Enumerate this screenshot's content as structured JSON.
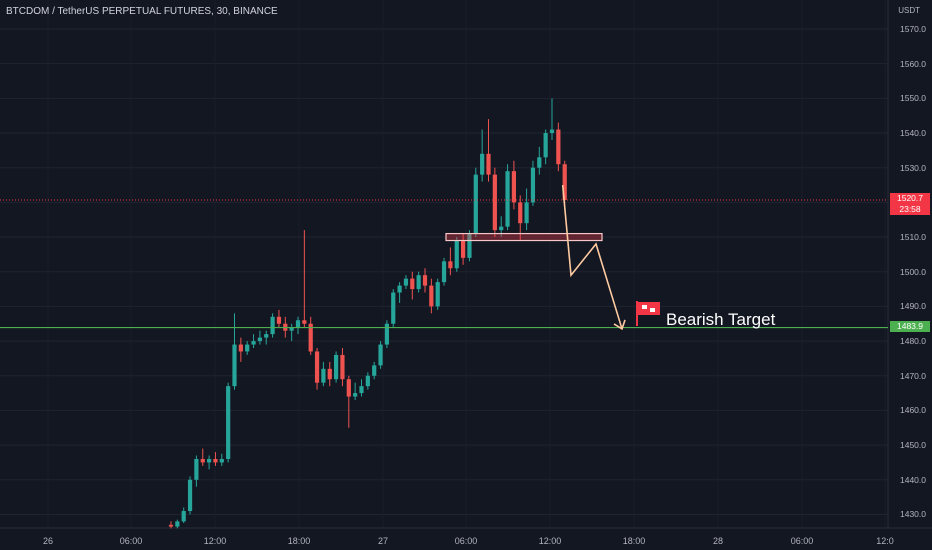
{
  "header": {
    "symbol_title": "BTCDOM / TetherUS PERPETUAL FUTURES, 30, BINANCE",
    "currency_unit": "USDT"
  },
  "price_axis": {
    "labels": [
      "1570.0",
      "1560.0",
      "1550.0",
      "1540.0",
      "1530.0",
      "1520.0",
      "1510.0",
      "1500.0",
      "1490.0",
      "1480.0",
      "1470.0",
      "1460.0",
      "1450.0",
      "1440.0",
      "1430.0"
    ],
    "current_price": "1520.7",
    "countdown": "23:58",
    "level_price": "1483.9"
  },
  "time_axis": {
    "labels": [
      "26",
      "06:00",
      "12:00",
      "18:00",
      "27",
      "06:00",
      "12:00",
      "18:00",
      "28",
      "06:00",
      "12:0"
    ]
  },
  "annotation": {
    "text": "Bearish Target",
    "icon": "red-flag-icon"
  },
  "colors": {
    "background": "#131722",
    "up_candle": "#26a69a",
    "down_candle": "#ef5350",
    "support_line": "#4caf50",
    "current_price": "#f23645",
    "arrow": "#ffcaa0"
  },
  "chart_data": {
    "type": "candlestick",
    "timeframe": "30",
    "ylim": [
      1426,
      1576
    ],
    "support_level": 1483.9,
    "zone": [
      1509,
      1511
    ],
    "candles": [
      [
        1427.0,
        1428.0,
        1426.0,
        1426.5
      ],
      [
        1426.5,
        1428.5,
        1426.0,
        1428.0
      ],
      [
        1428.0,
        1432.0,
        1427.5,
        1431.0
      ],
      [
        1431.0,
        1441.0,
        1430.0,
        1440.0
      ],
      [
        1440.0,
        1447.0,
        1438.0,
        1446.0
      ],
      [
        1446.0,
        1449.0,
        1444.0,
        1445.0
      ],
      [
        1445.0,
        1447.0,
        1443.0,
        1446.0
      ],
      [
        1446.0,
        1448.0,
        1444.0,
        1445.0
      ],
      [
        1445.0,
        1447.5,
        1444.0,
        1446.0
      ],
      [
        1446.0,
        1468.0,
        1445.0,
        1467.0
      ],
      [
        1467.0,
        1488.0,
        1466.0,
        1479.0
      ],
      [
        1479.0,
        1481.0,
        1474.0,
        1477.0
      ],
      [
        1477.0,
        1480.0,
        1476.0,
        1479.0
      ],
      [
        1479.0,
        1482.0,
        1478.0,
        1480.0
      ],
      [
        1480.0,
        1483.0,
        1479.0,
        1481.0
      ],
      [
        1481.0,
        1483.0,
        1479.0,
        1482.0
      ],
      [
        1482.0,
        1488.0,
        1481.0,
        1487.0
      ],
      [
        1487.0,
        1489.0,
        1484.0,
        1485.0
      ],
      [
        1485.0,
        1487.0,
        1481.0,
        1483.0
      ],
      [
        1483.0,
        1485.0,
        1480.0,
        1484.0
      ],
      [
        1484.0,
        1487.0,
        1482.0,
        1486.0
      ],
      [
        1486.0,
        1512.0,
        1484.0,
        1485.0
      ],
      [
        1485.0,
        1487.0,
        1476.0,
        1477.0
      ],
      [
        1477.0,
        1478.0,
        1466.0,
        1468.0
      ],
      [
        1468.0,
        1474.0,
        1467.0,
        1472.0
      ],
      [
        1472.0,
        1474.0,
        1467.0,
        1469.0
      ],
      [
        1469.0,
        1477.0,
        1468.0,
        1476.0
      ],
      [
        1476.0,
        1478.0,
        1467.0,
        1469.0
      ],
      [
        1469.0,
        1470.0,
        1455.0,
        1464.0
      ],
      [
        1464.0,
        1468.0,
        1463.0,
        1465.0
      ],
      [
        1465.0,
        1469.0,
        1464.0,
        1467.0
      ],
      [
        1467.0,
        1471.0,
        1466.0,
        1470.0
      ],
      [
        1470.0,
        1474.0,
        1469.0,
        1473.0
      ],
      [
        1473.0,
        1480.0,
        1472.0,
        1479.0
      ],
      [
        1479.0,
        1486.0,
        1478.0,
        1485.0
      ],
      [
        1485.0,
        1495.0,
        1484.0,
        1494.0
      ],
      [
        1494.0,
        1497.0,
        1491.0,
        1496.0
      ],
      [
        1496.0,
        1499.0,
        1495.0,
        1498.0
      ],
      [
        1498.0,
        1500.0,
        1492.0,
        1495.0
      ],
      [
        1495.0,
        1500.0,
        1494.0,
        1499.0
      ],
      [
        1499.0,
        1501.0,
        1494.0,
        1496.0
      ],
      [
        1496.0,
        1498.0,
        1488.0,
        1490.0
      ],
      [
        1490.0,
        1498.0,
        1489.0,
        1497.0
      ],
      [
        1497.0,
        1504.0,
        1496.0,
        1503.0
      ],
      [
        1503.0,
        1507.0,
        1499.0,
        1501.0
      ],
      [
        1501.0,
        1510.0,
        1500.0,
        1509.0
      ],
      [
        1509.0,
        1511.0,
        1502.0,
        1504.0
      ],
      [
        1504.0,
        1512.0,
        1503.0,
        1511.0
      ],
      [
        1511.0,
        1530.0,
        1510.0,
        1528.0
      ],
      [
        1528.0,
        1541.0,
        1526.0,
        1534.0
      ],
      [
        1534.0,
        1544.0,
        1526.0,
        1528.0
      ],
      [
        1528.0,
        1530.0,
        1510.0,
        1512.0
      ],
      [
        1512.0,
        1516.0,
        1510.0,
        1513.0
      ],
      [
        1513.0,
        1531.0,
        1512.0,
        1529.0
      ],
      [
        1529.0,
        1532.0,
        1518.0,
        1520.0
      ],
      [
        1520.0,
        1522.0,
        1509.0,
        1514.0
      ],
      [
        1514.0,
        1524.0,
        1512.0,
        1520.0
      ],
      [
        1520.0,
        1532.0,
        1519.0,
        1530.0
      ],
      [
        1530.0,
        1536.0,
        1528.0,
        1533.0
      ],
      [
        1533.0,
        1541.0,
        1531.0,
        1540.0
      ],
      [
        1540.0,
        1550.0,
        1538.0,
        1541.0
      ],
      [
        1541.0,
        1543.0,
        1529.0,
        1531.0
      ],
      [
        1531.0,
        1532.0,
        1519.0,
        1520.7
      ]
    ]
  }
}
